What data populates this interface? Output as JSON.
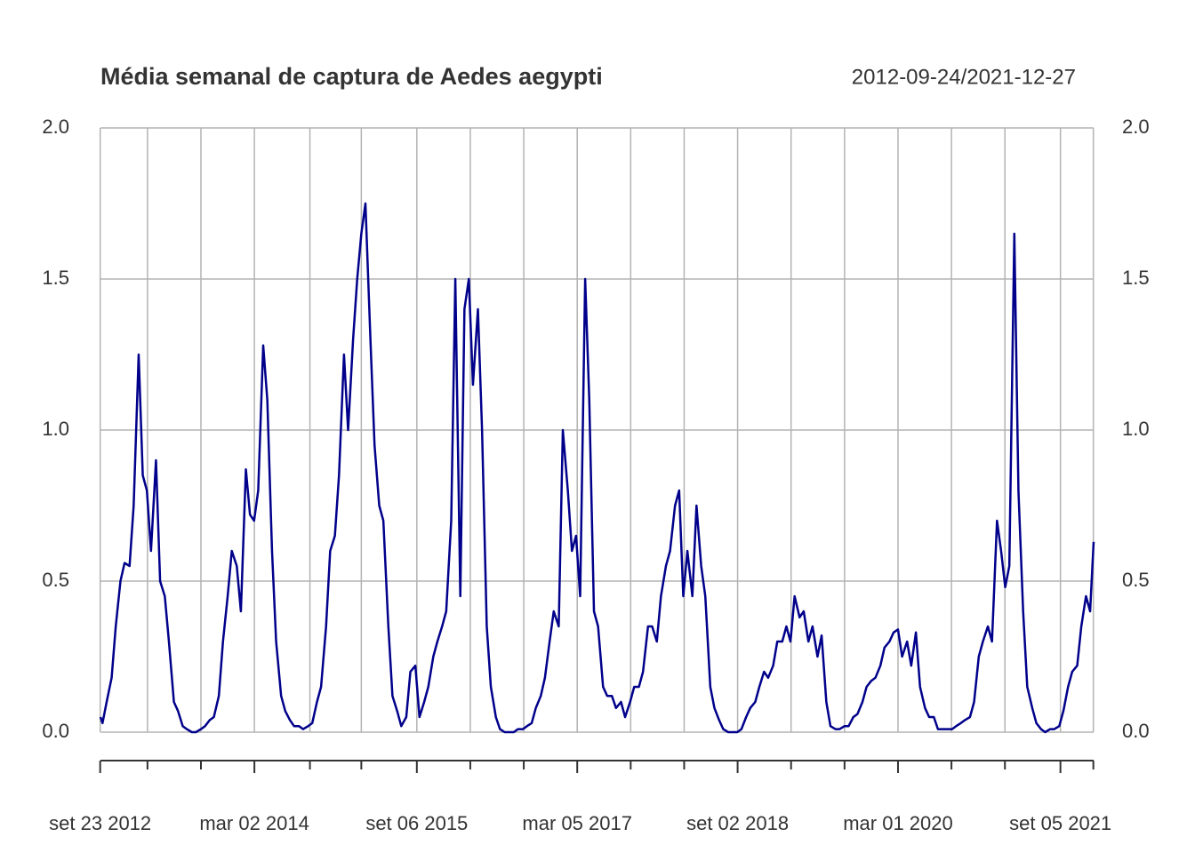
{
  "chart_data": {
    "type": "line",
    "title": "Média semanal de captura de Aedes aegypti",
    "subtitle": "2012-09-24/2021-12-27",
    "color": "#00008b",
    "grid": true,
    "xlim": [
      "2012-09-24",
      "2021-12-27"
    ],
    "ylim": [
      0,
      2
    ],
    "yticks": [
      {
        "value": 0,
        "label": "0.0"
      },
      0.5,
      {
        "value": 1,
        "label": "1.0"
      },
      1.5,
      {
        "value": 2,
        "label": "2.0"
      }
    ],
    "xticks": [
      {
        "value": "2012-09-23",
        "label": "set 23 2012"
      },
      {
        "value": "2014-03-02",
        "label": "mar 02 2014"
      },
      {
        "value": "2015-09-06",
        "label": "set 06 2015"
      },
      {
        "value": "2017-03-05",
        "label": "mar 05 2017"
      },
      {
        "value": "2018-09-02",
        "label": "set 02 2018"
      },
      {
        "value": "2020-03-01",
        "label": "mar 01 2020"
      },
      {
        "value": "2021-09-05",
        "label": "set 05 2021"
      }
    ],
    "xticks_minor": [
      "2013-03-03",
      "2013-09-01",
      "2014-09-07",
      "2015-03-01",
      "2016-03-06",
      "2016-09-04",
      "2017-09-03",
      "2018-03-04",
      "2019-03-03",
      "2019-09-01",
      "2020-08-30",
      "2021-02-28",
      "2021-12-26"
    ],
    "x": [
      "2012-09-24",
      "2012-10-01",
      "2012-10-15",
      "2012-11-01",
      "2012-11-15",
      "2012-12-01",
      "2012-12-15",
      "2013-01-01",
      "2013-01-15",
      "2013-02-01",
      "2013-02-15",
      "2013-03-01",
      "2013-03-15",
      "2013-04-01",
      "2013-04-15",
      "2013-05-01",
      "2013-05-15",
      "2013-06-01",
      "2013-06-15",
      "2013-07-01",
      "2013-07-15",
      "2013-08-01",
      "2013-08-15",
      "2013-09-01",
      "2013-09-15",
      "2013-10-01",
      "2013-10-15",
      "2013-11-01",
      "2013-11-15",
      "2013-12-01",
      "2013-12-15",
      "2014-01-01",
      "2014-01-15",
      "2014-02-01",
      "2014-02-15",
      "2014-03-01",
      "2014-03-15",
      "2014-04-01",
      "2014-04-15",
      "2014-05-01",
      "2014-05-15",
      "2014-06-01",
      "2014-06-15",
      "2014-07-01",
      "2014-07-15",
      "2014-08-01",
      "2014-08-15",
      "2014-09-01",
      "2014-09-15",
      "2014-10-01",
      "2014-10-15",
      "2014-11-01",
      "2014-11-15",
      "2014-12-01",
      "2014-12-15",
      "2015-01-01",
      "2015-01-15",
      "2015-02-01",
      "2015-02-15",
      "2015-03-01",
      "2015-03-15",
      "2015-04-01",
      "2015-04-15",
      "2015-05-01",
      "2015-05-15",
      "2015-06-01",
      "2015-06-15",
      "2015-07-01",
      "2015-07-15",
      "2015-08-01",
      "2015-08-15",
      "2015-09-01",
      "2015-09-15",
      "2015-10-01",
      "2015-10-15",
      "2015-11-01",
      "2015-11-15",
      "2015-12-01",
      "2015-12-15",
      "2016-01-01",
      "2016-01-15",
      "2016-02-01",
      "2016-02-15",
      "2016-03-01",
      "2016-03-15",
      "2016-04-01",
      "2016-04-15",
      "2016-05-01",
      "2016-05-15",
      "2016-06-01",
      "2016-06-15",
      "2016-07-01",
      "2016-07-15",
      "2016-08-01",
      "2016-08-15",
      "2016-09-01",
      "2016-09-15",
      "2016-10-01",
      "2016-10-15",
      "2016-11-01",
      "2016-11-15",
      "2016-12-01",
      "2016-12-15",
      "2017-01-01",
      "2017-01-15",
      "2017-02-01",
      "2017-02-15",
      "2017-03-01",
      "2017-03-15",
      "2017-04-01",
      "2017-04-15",
      "2017-05-01",
      "2017-05-15",
      "2017-06-01",
      "2017-06-15",
      "2017-07-01",
      "2017-07-15",
      "2017-08-01",
      "2017-08-15",
      "2017-09-01",
      "2017-09-15",
      "2017-10-01",
      "2017-10-15",
      "2017-11-01",
      "2017-11-15",
      "2017-12-01",
      "2017-12-15",
      "2018-01-01",
      "2018-01-15",
      "2018-02-01",
      "2018-02-15",
      "2018-03-01",
      "2018-03-15",
      "2018-04-01",
      "2018-04-15",
      "2018-05-01",
      "2018-05-15",
      "2018-06-01",
      "2018-06-15",
      "2018-07-01",
      "2018-07-15",
      "2018-08-01",
      "2018-08-15",
      "2018-09-01",
      "2018-09-15",
      "2018-10-01",
      "2018-10-15",
      "2018-11-01",
      "2018-11-15",
      "2018-12-01",
      "2018-12-15",
      "2019-01-01",
      "2019-01-15",
      "2019-02-01",
      "2019-02-15",
      "2019-03-01",
      "2019-03-15",
      "2019-04-01",
      "2019-04-15",
      "2019-05-01",
      "2019-05-15",
      "2019-06-01",
      "2019-06-15",
      "2019-07-01",
      "2019-07-15",
      "2019-08-01",
      "2019-08-15",
      "2019-09-01",
      "2019-09-15",
      "2019-10-01",
      "2019-10-15",
      "2019-11-01",
      "2019-11-15",
      "2019-12-01",
      "2019-12-15",
      "2020-01-01",
      "2020-01-15",
      "2020-02-01",
      "2020-02-15",
      "2020-03-01",
      "2020-03-15",
      "2020-04-01",
      "2020-04-15",
      "2020-05-01",
      "2020-05-15",
      "2020-06-01",
      "2020-06-15",
      "2020-07-01",
      "2020-07-15",
      "2020-08-01",
      "2020-08-15",
      "2020-09-01",
      "2020-09-15",
      "2020-10-01",
      "2020-10-15",
      "2020-11-01",
      "2020-11-15",
      "2020-12-01",
      "2020-12-15",
      "2021-01-01",
      "2021-01-15",
      "2021-02-01",
      "2021-02-15",
      "2021-03-01",
      "2021-03-15",
      "2021-04-01",
      "2021-04-15",
      "2021-05-01",
      "2021-05-15",
      "2021-06-01",
      "2021-06-15",
      "2021-07-01",
      "2021-07-15",
      "2021-08-01",
      "2021-08-15",
      "2021-09-01",
      "2021-09-15",
      "2021-10-01",
      "2021-10-15",
      "2021-11-01",
      "2021-11-15",
      "2021-12-01",
      "2021-12-15",
      "2021-12-27"
    ],
    "values": [
      0.05,
      0.03,
      0.1,
      0.18,
      0.35,
      0.5,
      0.56,
      0.55,
      0.75,
      1.25,
      0.85,
      0.8,
      0.6,
      0.9,
      0.5,
      0.45,
      0.3,
      0.1,
      0.07,
      0.02,
      0.01,
      0,
      0,
      0.01,
      0.02,
      0.04,
      0.05,
      0.12,
      0.3,
      0.45,
      0.6,
      0.55,
      0.4,
      0.87,
      0.72,
      0.7,
      0.8,
      1.28,
      1.1,
      0.6,
      0.3,
      0.12,
      0.07,
      0.04,
      0.02,
      0.02,
      0.01,
      0.02,
      0.03,
      0.1,
      0.15,
      0.35,
      0.6,
      0.65,
      0.85,
      1.25,
      1.0,
      1.3,
      1.5,
      1.65,
      1.75,
      1.3,
      0.95,
      0.75,
      0.7,
      0.35,
      0.12,
      0.07,
      0.02,
      0.05,
      0.2,
      0.22,
      0.05,
      0.1,
      0.15,
      0.25,
      0.3,
      0.35,
      0.4,
      0.7,
      1.5,
      0.45,
      1.4,
      1.5,
      1.15,
      1.4,
      1.0,
      0.35,
      0.15,
      0.05,
      0.01,
      0,
      0,
      0,
      0.01,
      0.01,
      0.02,
      0.03,
      0.08,
      0.12,
      0.18,
      0.3,
      0.4,
      0.35,
      1.0,
      0.8,
      0.6,
      0.65,
      0.45,
      1.5,
      1.1,
      0.4,
      0.35,
      0.15,
      0.12,
      0.12,
      0.08,
      0.1,
      0.05,
      0.1,
      0.15,
      0.15,
      0.2,
      0.35,
      0.35,
      0.3,
      0.45,
      0.55,
      0.6,
      0.75,
      0.8,
      0.45,
      0.6,
      0.45,
      0.75,
      0.55,
      0.45,
      0.15,
      0.08,
      0.04,
      0.01,
      0,
      0,
      0,
      0.01,
      0.05,
      0.08,
      0.1,
      0.15,
      0.2,
      0.18,
      0.22,
      0.3,
      0.3,
      0.35,
      0.3,
      0.45,
      0.38,
      0.4,
      0.3,
      0.35,
      0.25,
      0.32,
      0.1,
      0.02,
      0.01,
      0.01,
      0.02,
      0.02,
      0.05,
      0.06,
      0.1,
      0.15,
      0.17,
      0.18,
      0.22,
      0.28,
      0.3,
      0.33,
      0.34,
      0.25,
      0.3,
      0.22,
      0.33,
      0.15,
      0.08,
      0.05,
      0.05,
      0.01,
      0.01,
      0.01,
      0.01,
      0.02,
      0.03,
      0.04,
      0.05,
      0.1,
      0.25,
      0.3,
      0.35,
      0.3,
      0.7,
      0.6,
      0.48,
      0.55,
      1.65,
      0.8,
      0.4,
      0.15,
      0.08,
      0.03,
      0.01,
      0,
      0.01,
      0.01,
      0.02,
      0.07,
      0.15,
      0.2,
      0.22,
      0.35,
      0.45,
      0.4,
      0.63
    ]
  }
}
